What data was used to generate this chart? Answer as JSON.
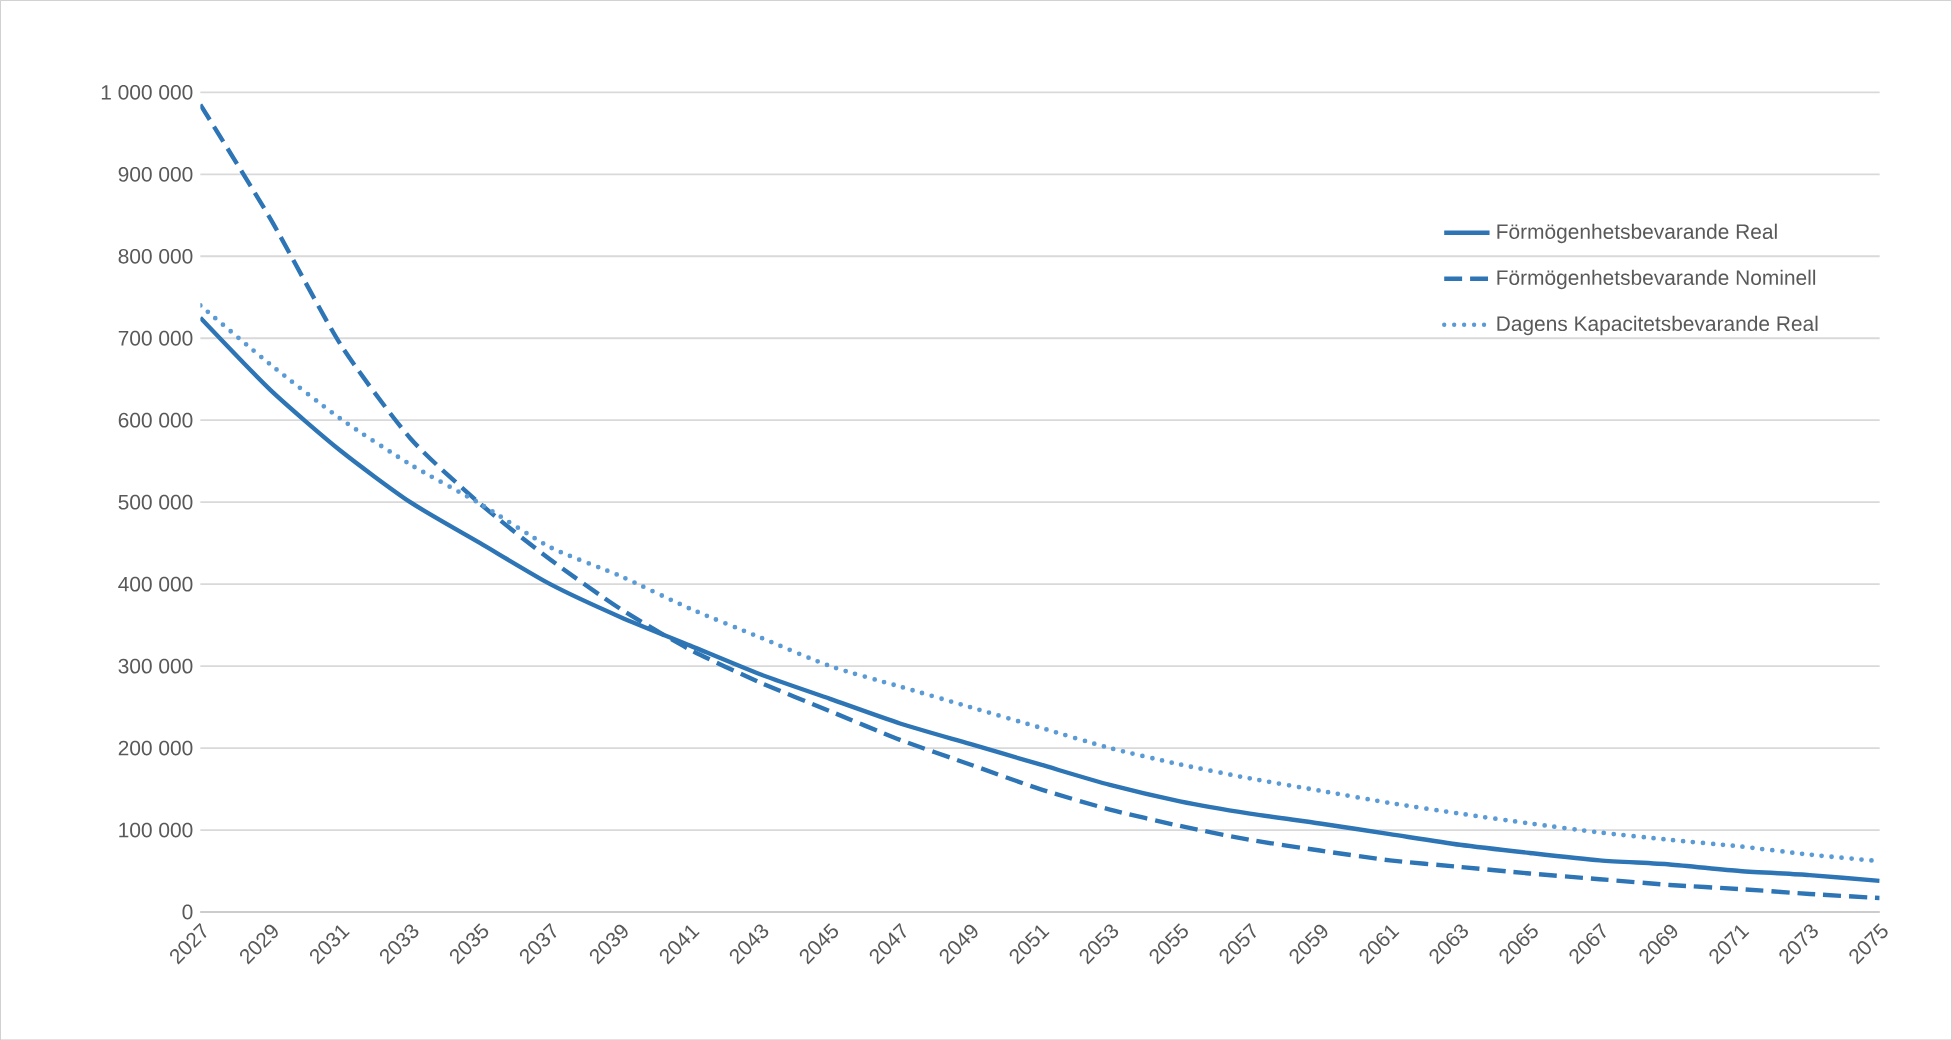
{
  "chart_data": {
    "type": "line",
    "x": [
      2027,
      2029,
      2031,
      2033,
      2035,
      2037,
      2039,
      2041,
      2043,
      2045,
      2047,
      2049,
      2051,
      2053,
      2055,
      2057,
      2059,
      2061,
      2063,
      2065,
      2067,
      2069,
      2071,
      2073,
      2075
    ],
    "series": [
      {
        "name": "Förmögenhetsbevarande Real",
        "color": "#2e75b6",
        "line_style": "solid",
        "values": [
          725000,
          637000,
          563000,
          500000,
          450000,
          400000,
          360000,
          325000,
          290000,
          260000,
          230000,
          205000,
          180000,
          155000,
          135000,
          120000,
          108000,
          95000,
          82000,
          72000,
          63000,
          58000,
          50000,
          45000,
          38000
        ]
      },
      {
        "name": "Förmögenhetsbevarande Nominell",
        "color": "#2e75b6",
        "line_style": "dashed",
        "values": [
          985000,
          846000,
          693000,
          578000,
          498000,
          430000,
          370000,
          320000,
          280000,
          245000,
          210000,
          180000,
          150000,
          125000,
          105000,
          88000,
          75000,
          63000,
          55000,
          47000,
          40000,
          33000,
          28000,
          22000,
          17000
        ]
      },
      {
        "name": "Dagens Kapacitetsbevarande Real",
        "color": "#5b9bd5",
        "line_style": "dotted",
        "values": [
          740000,
          668000,
          602000,
          546000,
          498000,
          445000,
          410000,
          370000,
          335000,
          300000,
          275000,
          250000,
          225000,
          200000,
          180000,
          163000,
          148000,
          133000,
          120000,
          108000,
          97000,
          88000,
          80000,
          70000,
          62000
        ]
      }
    ],
    "xlim": [
      2027,
      2075
    ],
    "xticks": [
      2027,
      2029,
      2031,
      2033,
      2035,
      2037,
      2039,
      2041,
      2043,
      2045,
      2047,
      2049,
      2051,
      2053,
      2055,
      2057,
      2059,
      2061,
      2063,
      2065,
      2067,
      2069,
      2071,
      2073,
      2075
    ],
    "ylim": [
      0,
      1000000
    ],
    "yticks": [
      0,
      {
        "value": 100000,
        "label": "100 000"
      },
      {
        "value": 200000,
        "label": "200 000"
      },
      {
        "value": 300000,
        "label": "300 000"
      },
      {
        "value": 400000,
        "label": "400 000"
      },
      {
        "value": 500000,
        "label": "500 000"
      },
      {
        "value": 600000,
        "label": "600 000"
      },
      {
        "value": 700000,
        "label": "700 000"
      },
      {
        "value": 800000,
        "label": "800 000"
      },
      {
        "value": 900000,
        "label": "900 000"
      },
      {
        "value": 1000000,
        "label": "1 000 000"
      }
    ],
    "grid": "y",
    "legend": "top right",
    "marker": "none"
  }
}
